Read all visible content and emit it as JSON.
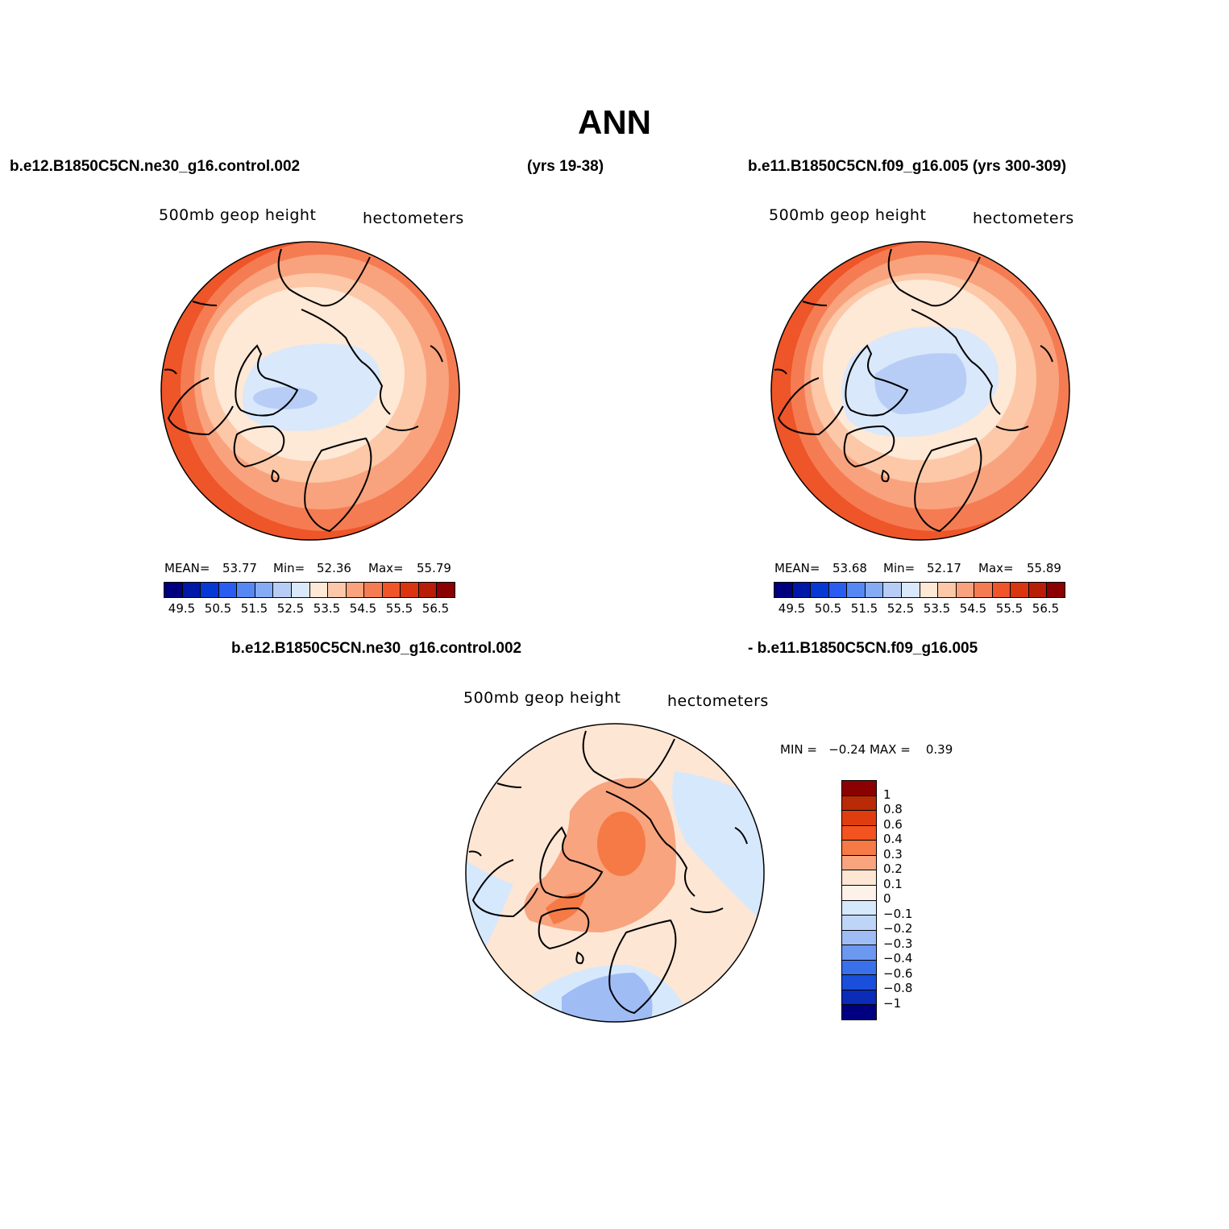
{
  "title": "ANN",
  "top_left": {
    "case": "b.e12.B1850C5CN.ne30_g16.control.002",
    "years": "(yrs 19-38)",
    "variable": "500mb geop height",
    "units": "hectometers",
    "stats": {
      "mean_label": "MEAN=",
      "mean": "53.77",
      "min_label": "Min=",
      "min": "52.36",
      "max_label": "Max=",
      "max": "55.79"
    }
  },
  "top_right": {
    "case": "b.e11.B1850C5CN.f09_g16.005 (yrs 300-309)",
    "variable": "500mb geop height",
    "units": "hectometers",
    "stats": {
      "mean_label": "MEAN=",
      "mean": "53.68",
      "min_label": "Min=",
      "min": "52.17",
      "max_label": "Max=",
      "max": "55.89"
    }
  },
  "difference": {
    "case_a": "b.e12.B1850C5CN.ne30_g16.control.002",
    "case_b": "- b.e11.B1850C5CN.f09_g16.005",
    "variable": "500mb geop height",
    "units": "hectometers",
    "stats": "MIN =   −0.24 MAX =    0.39"
  },
  "abs_colorbar": {
    "colors": [
      "#00007f",
      "#0018a8",
      "#0638d4",
      "#2a5cf0",
      "#5787f2",
      "#86abf5",
      "#b8cdf6",
      "#d9e8fb",
      "#fee8d6",
      "#fcc8a8",
      "#f9a37e",
      "#f57c52",
      "#ee5528",
      "#d93511",
      "#b81d05",
      "#8b0000"
    ],
    "tick_labels": [
      "49.5",
      "50.5",
      "51.5",
      "52.5",
      "53.5",
      "54.5",
      "55.5",
      "56.5"
    ]
  },
  "diff_colorbar": {
    "colors": [
      "#8b0000",
      "#b92a06",
      "#df3d10",
      "#f2531f",
      "#f57a45",
      "#f8a47e",
      "#fde6d4",
      "#fdf2ea",
      "#d6e8fc",
      "#bfd5f8",
      "#9fbcf5",
      "#6c98f0",
      "#3a70ea",
      "#1a4fdc",
      "#0a2cb8",
      "#000080"
    ],
    "tick_labels": [
      "1",
      "0.8",
      "0.6",
      "0.4",
      "0.3",
      "0.2",
      "0.1",
      "0",
      "−0.1",
      "−0.2",
      "−0.3",
      "−0.4",
      "−0.6",
      "−0.8",
      "−1"
    ]
  }
}
